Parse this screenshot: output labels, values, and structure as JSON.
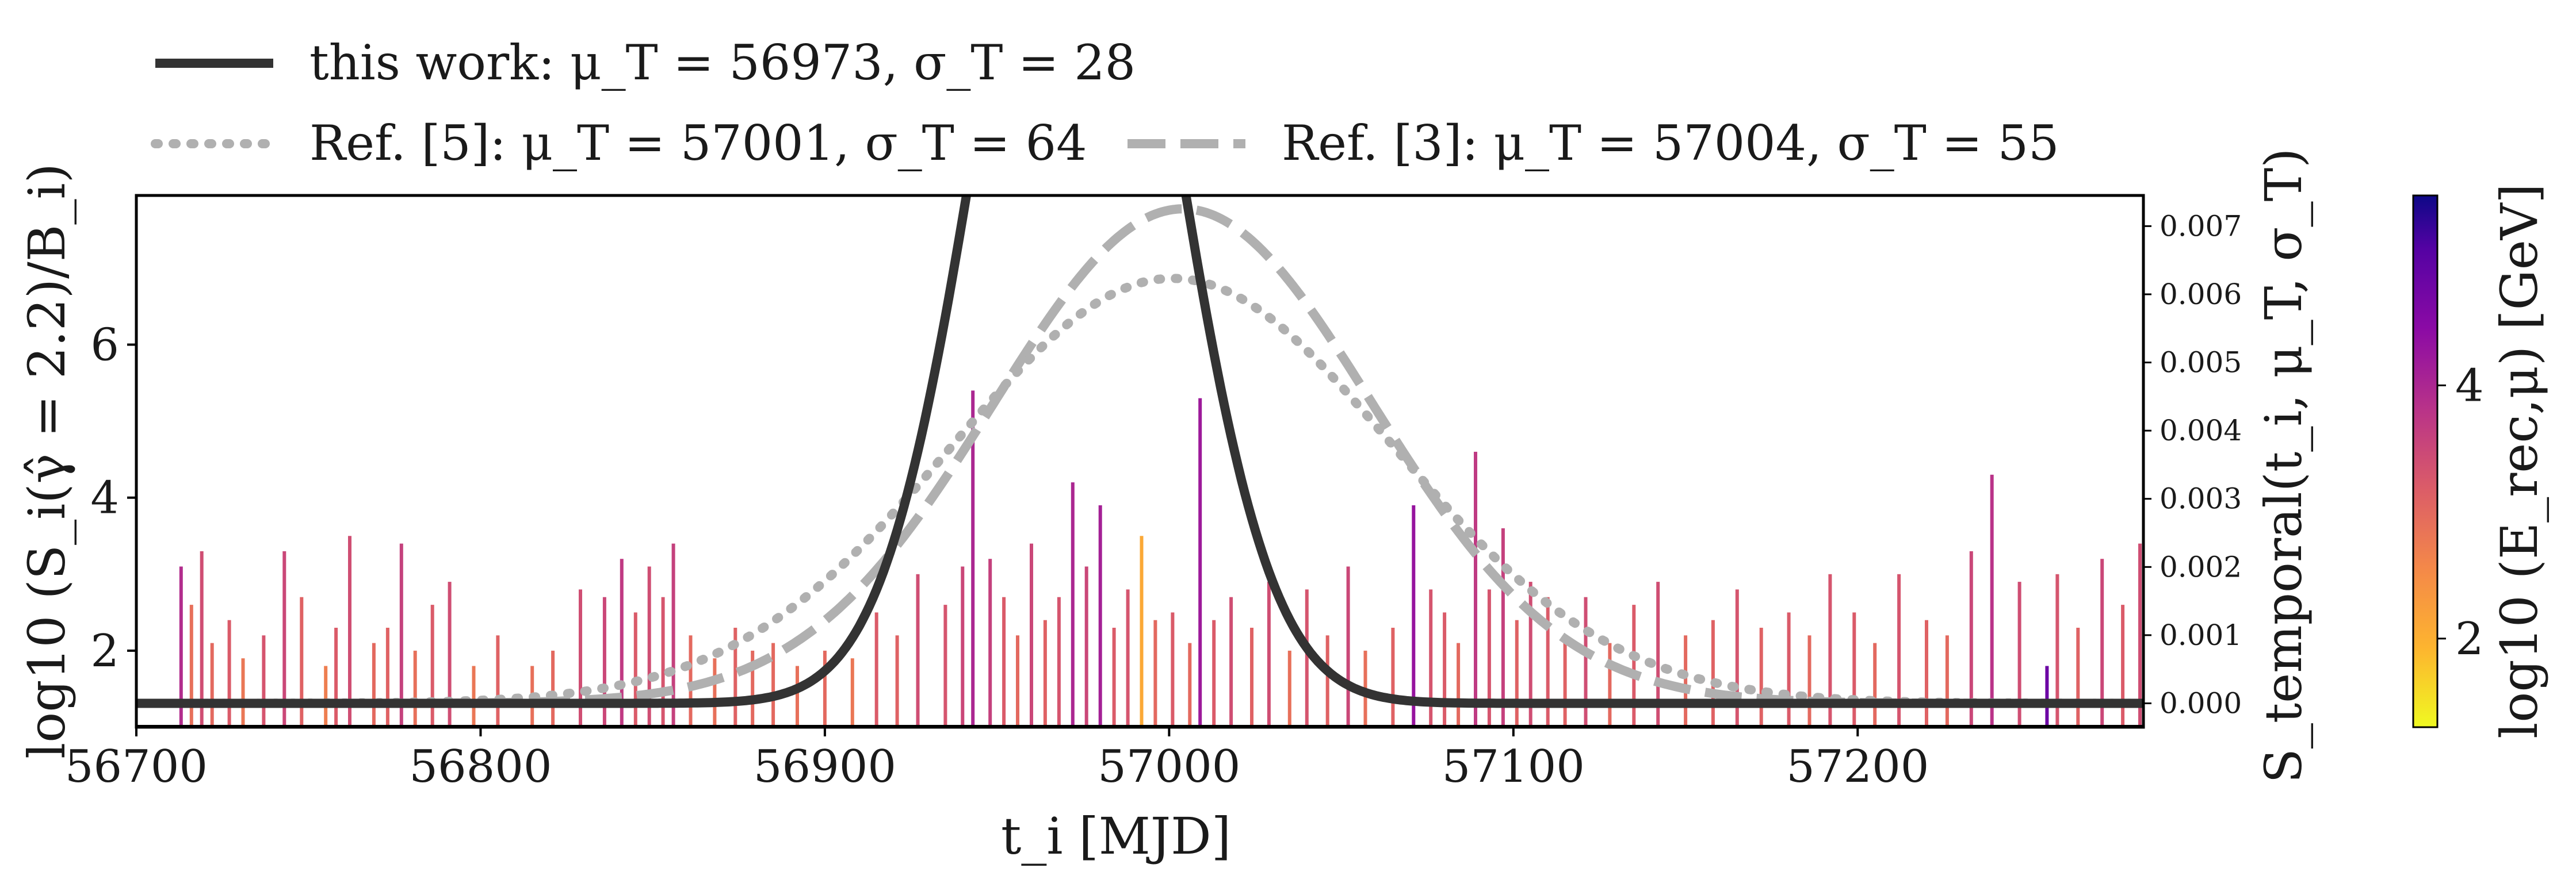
{
  "chart_data": {
    "type": "line+bar",
    "legend": [
      {
        "label": "this work: μ_T = 56973, σ_T = 28",
        "style": "solid",
        "color": "#333333"
      },
      {
        "label": "Ref. [5]: μ_T = 57001, σ_T = 64",
        "style": "dotted",
        "color": "#b0b0b0"
      },
      {
        "label": "Ref. [3]: μ_T = 57004, σ_T = 55",
        "style": "dashed",
        "color": "#b0b0b0"
      }
    ],
    "xlabel": "t_i [MJD]",
    "ylabel_left": "log10 (S_i(γ̂ = 2.2)/B_i)",
    "ylabel_right": "S_temporal(t_i, μ_T, σ_T)",
    "colorbar_label": "log10 (E_rec,μ) [GeV]",
    "xlim": [
      56700,
      57283
    ],
    "ylim_left": [
      1.0,
      7.95
    ],
    "ylim_right": [
      -0.00035,
      0.00745
    ],
    "xticks": [
      "56700",
      "56800",
      "56900",
      "57000",
      "57100",
      "57200"
    ],
    "yticks_left": [
      "2",
      "4",
      "6"
    ],
    "yticks_right": [
      "0.000",
      "0.001",
      "0.002",
      "0.003",
      "0.004",
      "0.005",
      "0.006",
      "0.007"
    ],
    "colorbar_ticks": [
      "2",
      "4"
    ],
    "colorbar_range": [
      1.3,
      5.5
    ],
    "series": [
      {
        "name": "this work",
        "mu": 56973,
        "sigma": 28,
        "style": "solid"
      },
      {
        "name": "Ref. [5]",
        "mu": 57001,
        "sigma": 64,
        "style": "dotted"
      },
      {
        "name": "Ref. [3]",
        "mu": 57004,
        "sigma": 55,
        "style": "dashed"
      }
    ],
    "events": [
      {
        "t": 56713,
        "v": 3.1,
        "e": 3.9
      },
      {
        "t": 56716,
        "v": 2.6,
        "e": 2.9
      },
      {
        "t": 56719,
        "v": 3.3,
        "e": 3.4
      },
      {
        "t": 56722,
        "v": 2.1,
        "e": 3.0
      },
      {
        "t": 56727,
        "v": 2.4,
        "e": 3.2
      },
      {
        "t": 56731,
        "v": 1.9,
        "e": 2.8
      },
      {
        "t": 56737,
        "v": 2.2,
        "e": 3.3
      },
      {
        "t": 56743,
        "v": 3.3,
        "e": 3.5
      },
      {
        "t": 56748,
        "v": 2.7,
        "e": 3.1
      },
      {
        "t": 56755,
        "v": 1.8,
        "e": 2.7
      },
      {
        "t": 56758,
        "v": 2.3,
        "e": 3.2
      },
      {
        "t": 56762,
        "v": 3.5,
        "e": 3.4
      },
      {
        "t": 56769,
        "v": 2.1,
        "e": 3.0
      },
      {
        "t": 56773,
        "v": 2.3,
        "e": 3.1
      },
      {
        "t": 56777,
        "v": 3.4,
        "e": 3.6
      },
      {
        "t": 56781,
        "v": 2.0,
        "e": 2.9
      },
      {
        "t": 56786,
        "v": 2.6,
        "e": 3.2
      },
      {
        "t": 56791,
        "v": 2.9,
        "e": 3.4
      },
      {
        "t": 56798,
        "v": 1.8,
        "e": 2.8
      },
      {
        "t": 56805,
        "v": 2.2,
        "e": 3.1
      },
      {
        "t": 56815,
        "v": 1.8,
        "e": 2.9
      },
      {
        "t": 56821,
        "v": 2.0,
        "e": 3.0
      },
      {
        "t": 56829,
        "v": 2.8,
        "e": 3.4
      },
      {
        "t": 56836,
        "v": 2.7,
        "e": 3.5
      },
      {
        "t": 56841,
        "v": 3.2,
        "e": 3.7
      },
      {
        "t": 56845,
        "v": 2.5,
        "e": 3.2
      },
      {
        "t": 56849,
        "v": 3.1,
        "e": 3.4
      },
      {
        "t": 56853,
        "v": 2.7,
        "e": 3.3
      },
      {
        "t": 56856,
        "v": 3.4,
        "e": 3.6
      },
      {
        "t": 56861,
        "v": 2.2,
        "e": 3.0
      },
      {
        "t": 56868,
        "v": 1.9,
        "e": 2.9
      },
      {
        "t": 56874,
        "v": 2.3,
        "e": 3.1
      },
      {
        "t": 56879,
        "v": 2.0,
        "e": 3.0
      },
      {
        "t": 56885,
        "v": 2.1,
        "e": 3.0
      },
      {
        "t": 56892,
        "v": 1.8,
        "e": 2.9
      },
      {
        "t": 56900,
        "v": 2.0,
        "e": 3.0
      },
      {
        "t": 56908,
        "v": 1.9,
        "e": 2.8
      },
      {
        "t": 56915,
        "v": 2.5,
        "e": 3.2
      },
      {
        "t": 56921,
        "v": 2.2,
        "e": 3.1
      },
      {
        "t": 56927,
        "v": 3.0,
        "e": 3.4
      },
      {
        "t": 56935,
        "v": 2.6,
        "e": 3.3
      },
      {
        "t": 56940,
        "v": 3.1,
        "e": 3.5
      },
      {
        "t": 56943,
        "v": 5.4,
        "e": 4.0
      },
      {
        "t": 56948,
        "v": 3.2,
        "e": 3.6
      },
      {
        "t": 56952,
        "v": 2.7,
        "e": 3.2
      },
      {
        "t": 56956,
        "v": 2.2,
        "e": 3.0
      },
      {
        "t": 56960,
        "v": 3.4,
        "e": 3.5
      },
      {
        "t": 56964,
        "v": 2.4,
        "e": 3.1
      },
      {
        "t": 56968,
        "v": 2.7,
        "e": 3.3
      },
      {
        "t": 56972,
        "v": 4.2,
        "e": 4.0
      },
      {
        "t": 56976,
        "v": 3.1,
        "e": 3.5
      },
      {
        "t": 56980,
        "v": 3.9,
        "e": 4.1
      },
      {
        "t": 56984,
        "v": 2.3,
        "e": 3.2
      },
      {
        "t": 56988,
        "v": 2.8,
        "e": 3.3
      },
      {
        "t": 56992,
        "v": 3.5,
        "e": 2.1
      },
      {
        "t": 56996,
        "v": 2.4,
        "e": 3.0
      },
      {
        "t": 57001,
        "v": 2.5,
        "e": 3.2
      },
      {
        "t": 57006,
        "v": 2.1,
        "e": 3.0
      },
      {
        "t": 57009,
        "v": 5.3,
        "e": 4.2
      },
      {
        "t": 57013,
        "v": 2.4,
        "e": 3.2
      },
      {
        "t": 57018,
        "v": 2.7,
        "e": 3.4
      },
      {
        "t": 57024,
        "v": 2.3,
        "e": 3.1
      },
      {
        "t": 57029,
        "v": 2.9,
        "e": 3.4
      },
      {
        "t": 57035,
        "v": 2.0,
        "e": 2.9
      },
      {
        "t": 57040,
        "v": 2.8,
        "e": 3.3
      },
      {
        "t": 57046,
        "v": 2.2,
        "e": 3.1
      },
      {
        "t": 57052,
        "v": 3.1,
        "e": 3.5
      },
      {
        "t": 57057,
        "v": 2.0,
        "e": 2.9
      },
      {
        "t": 57065,
        "v": 2.3,
        "e": 3.1
      },
      {
        "t": 57071,
        "v": 3.9,
        "e": 4.3
      },
      {
        "t": 57076,
        "v": 2.8,
        "e": 3.3
      },
      {
        "t": 57080,
        "v": 2.5,
        "e": 3.2
      },
      {
        "t": 57084,
        "v": 2.1,
        "e": 3.0
      },
      {
        "t": 57089,
        "v": 4.6,
        "e": 3.7
      },
      {
        "t": 57093,
        "v": 2.8,
        "e": 3.3
      },
      {
        "t": 57097,
        "v": 3.6,
        "e": 3.6
      },
      {
        "t": 57101,
        "v": 2.4,
        "e": 3.1
      },
      {
        "t": 57105,
        "v": 2.9,
        "e": 3.4
      },
      {
        "t": 57110,
        "v": 2.7,
        "e": 3.2
      },
      {
        "t": 57115,
        "v": 2.2,
        "e": 3.1
      },
      {
        "t": 57121,
        "v": 2.7,
        "e": 3.4
      },
      {
        "t": 57128,
        "v": 2.1,
        "e": 3.0
      },
      {
        "t": 57135,
        "v": 2.6,
        "e": 3.2
      },
      {
        "t": 57142,
        "v": 2.9,
        "e": 3.4
      },
      {
        "t": 57150,
        "v": 2.2,
        "e": 3.0
      },
      {
        "t": 57158,
        "v": 2.4,
        "e": 3.1
      },
      {
        "t": 57165,
        "v": 2.8,
        "e": 3.3
      },
      {
        "t": 57172,
        "v": 2.3,
        "e": 3.1
      },
      {
        "t": 57180,
        "v": 2.5,
        "e": 3.2
      },
      {
        "t": 57186,
        "v": 2.2,
        "e": 3.0
      },
      {
        "t": 57192,
        "v": 3.0,
        "e": 3.3
      },
      {
        "t": 57199,
        "v": 2.5,
        "e": 3.2
      },
      {
        "t": 57205,
        "v": 2.1,
        "e": 3.0
      },
      {
        "t": 57212,
        "v": 3.0,
        "e": 3.3
      },
      {
        "t": 57220,
        "v": 2.4,
        "e": 3.1
      },
      {
        "t": 57226,
        "v": 2.2,
        "e": 3.0
      },
      {
        "t": 57233,
        "v": 3.3,
        "e": 3.5
      },
      {
        "t": 57239,
        "v": 4.3,
        "e": 3.8
      },
      {
        "t": 57247,
        "v": 2.9,
        "e": 3.4
      },
      {
        "t": 57255,
        "v": 1.8,
        "e": 4.8
      },
      {
        "t": 57258,
        "v": 3.0,
        "e": 3.3
      },
      {
        "t": 57264,
        "v": 2.3,
        "e": 3.1
      },
      {
        "t": 57271,
        "v": 3.2,
        "e": 3.5
      },
      {
        "t": 57277,
        "v": 2.6,
        "e": 3.2
      },
      {
        "t": 57282,
        "v": 3.4,
        "e": 3.4
      }
    ]
  }
}
